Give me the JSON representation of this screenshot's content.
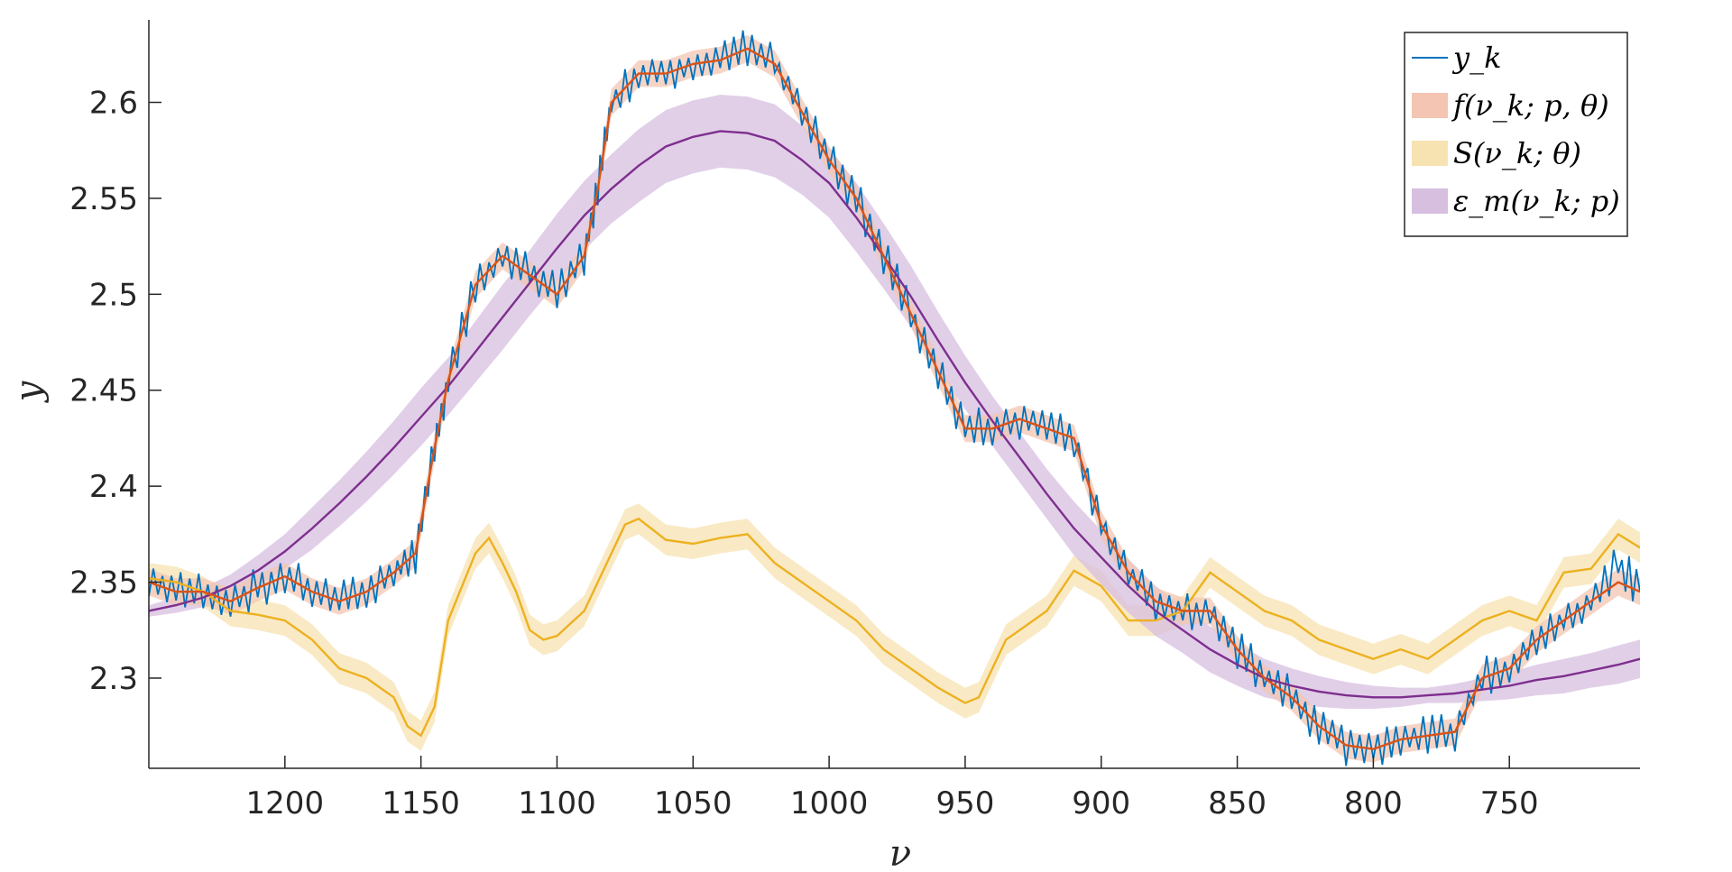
{
  "chart_data": {
    "type": "line",
    "xlabel": "ν",
    "ylabel": "y",
    "x_reversed": true,
    "xlim": [
      1250,
      702
    ],
    "ylim": [
      2.253,
      2.643
    ],
    "x_ticks": [
      1200,
      1150,
      1100,
      1050,
      1000,
      950,
      900,
      850,
      800,
      750
    ],
    "x_tick_labels": [
      "1200",
      "1150",
      "1100",
      "1050",
      "1000",
      "950",
      "900",
      "850",
      "800",
      "750"
    ],
    "y_ticks": [
      2.3,
      2.35,
      2.4,
      2.45,
      2.5,
      2.55,
      2.6
    ],
    "y_tick_labels": [
      "2.3",
      "2.35",
      "2.4",
      "2.45",
      "2.5",
      "2.55",
      "2.6"
    ],
    "grid": false,
    "legend_position": "top-right",
    "colors": {
      "y_k": "#0072BD",
      "f": "#D95319",
      "f_band": "#F3C5B2",
      "S": "#EDB120",
      "S_band": "#F7E3B2",
      "eps": "#7E2F8E",
      "eps_band": "#D7BFE0",
      "axis": "#262626"
    },
    "series": [
      {
        "key": "y_k",
        "name": "y_k",
        "style": "noisy line",
        "x": [
          1250,
          1240,
          1230,
          1220,
          1210,
          1200,
          1190,
          1180,
          1170,
          1160,
          1152,
          1145,
          1140,
          1130,
          1120,
          1110,
          1100,
          1090,
          1085,
          1080,
          1070,
          1060,
          1050,
          1040,
          1030,
          1020,
          1010,
          1000,
          990,
          980,
          970,
          960,
          950,
          940,
          930,
          920,
          910,
          900,
          890,
          880,
          870,
          860,
          850,
          840,
          830,
          820,
          810,
          800,
          790,
          780,
          770,
          760,
          750,
          740,
          730,
          720,
          710,
          702
        ],
        "y": [
          2.35,
          2.345,
          2.345,
          2.34,
          2.347,
          2.353,
          2.345,
          2.34,
          2.345,
          2.355,
          2.365,
          2.42,
          2.455,
          2.505,
          2.52,
          2.51,
          2.5,
          2.52,
          2.555,
          2.6,
          2.615,
          2.615,
          2.62,
          2.622,
          2.628,
          2.62,
          2.595,
          2.57,
          2.55,
          2.52,
          2.49,
          2.46,
          2.43,
          2.43,
          2.435,
          2.43,
          2.425,
          2.38,
          2.355,
          2.34,
          2.335,
          2.335,
          2.315,
          2.3,
          2.29,
          2.275,
          2.265,
          2.263,
          2.268,
          2.27,
          2.272,
          2.3,
          2.305,
          2.32,
          2.33,
          2.34,
          2.36,
          2.345
        ]
      },
      {
        "key": "f",
        "name": "f(ν_k; p, θ)",
        "x": [
          1250,
          1240,
          1230,
          1220,
          1210,
          1200,
          1190,
          1180,
          1170,
          1160,
          1152,
          1145,
          1140,
          1130,
          1120,
          1110,
          1100,
          1090,
          1085,
          1080,
          1070,
          1060,
          1050,
          1040,
          1030,
          1020,
          1010,
          1000,
          990,
          980,
          970,
          960,
          950,
          940,
          930,
          920,
          910,
          900,
          890,
          880,
          870,
          860,
          850,
          840,
          830,
          820,
          810,
          800,
          790,
          780,
          770,
          760,
          750,
          740,
          730,
          720,
          710,
          702
        ],
        "y": [
          2.35,
          2.345,
          2.345,
          2.34,
          2.347,
          2.353,
          2.345,
          2.34,
          2.345,
          2.355,
          2.365,
          2.42,
          2.455,
          2.505,
          2.52,
          2.51,
          2.5,
          2.52,
          2.555,
          2.6,
          2.615,
          2.615,
          2.62,
          2.622,
          2.628,
          2.62,
          2.595,
          2.57,
          2.55,
          2.52,
          2.49,
          2.46,
          2.43,
          2.43,
          2.435,
          2.43,
          2.425,
          2.38,
          2.355,
          2.34,
          2.335,
          2.335,
          2.315,
          2.3,
          2.29,
          2.275,
          2.265,
          2.263,
          2.268,
          2.27,
          2.272,
          2.3,
          2.305,
          2.32,
          2.33,
          2.34,
          2.35,
          2.345
        ],
        "band": 0.007
      },
      {
        "key": "S",
        "name": "S(ν_k; θ)",
        "x": [
          1250,
          1240,
          1230,
          1220,
          1210,
          1200,
          1190,
          1180,
          1170,
          1160,
          1155,
          1150,
          1145,
          1140,
          1130,
          1125,
          1120,
          1115,
          1110,
          1105,
          1100,
          1090,
          1085,
          1080,
          1075,
          1070,
          1060,
          1050,
          1040,
          1030,
          1020,
          1010,
          1000,
          990,
          980,
          970,
          960,
          950,
          945,
          940,
          935,
          930,
          920,
          910,
          900,
          890,
          880,
          870,
          860,
          850,
          840,
          830,
          820,
          810,
          800,
          790,
          780,
          770,
          760,
          750,
          740,
          730,
          720,
          710,
          702
        ],
        "y": [
          2.352,
          2.35,
          2.345,
          2.335,
          2.333,
          2.33,
          2.32,
          2.305,
          2.3,
          2.29,
          2.275,
          2.27,
          2.285,
          2.33,
          2.365,
          2.373,
          2.36,
          2.345,
          2.325,
          2.32,
          2.322,
          2.335,
          2.35,
          2.365,
          2.38,
          2.383,
          2.372,
          2.37,
          2.373,
          2.375,
          2.36,
          2.35,
          2.34,
          2.33,
          2.315,
          2.305,
          2.295,
          2.287,
          2.29,
          2.305,
          2.32,
          2.325,
          2.335,
          2.356,
          2.348,
          2.33,
          2.33,
          2.335,
          2.355,
          2.345,
          2.335,
          2.33,
          2.32,
          2.315,
          2.31,
          2.315,
          2.31,
          2.32,
          2.33,
          2.335,
          2.33,
          2.355,
          2.357,
          2.375,
          2.368
        ],
        "band": 0.008
      },
      {
        "key": "eps",
        "name": "ε_m(ν_k; p)",
        "x": [
          1250,
          1240,
          1230,
          1220,
          1210,
          1200,
          1190,
          1180,
          1170,
          1160,
          1150,
          1140,
          1130,
          1120,
          1110,
          1100,
          1090,
          1080,
          1070,
          1060,
          1050,
          1040,
          1030,
          1020,
          1010,
          1000,
          990,
          980,
          970,
          960,
          950,
          940,
          930,
          920,
          910,
          900,
          890,
          880,
          870,
          860,
          850,
          840,
          830,
          820,
          810,
          800,
          790,
          780,
          770,
          760,
          750,
          740,
          730,
          720,
          710,
          702
        ],
        "y": [
          2.335,
          2.338,
          2.342,
          2.348,
          2.356,
          2.366,
          2.378,
          2.391,
          2.405,
          2.42,
          2.436,
          2.452,
          2.47,
          2.488,
          2.506,
          2.524,
          2.541,
          2.555,
          2.567,
          2.577,
          2.582,
          2.585,
          2.584,
          2.58,
          2.57,
          2.558,
          2.54,
          2.52,
          2.499,
          2.476,
          2.454,
          2.434,
          2.415,
          2.396,
          2.378,
          2.363,
          2.348,
          2.335,
          2.325,
          2.315,
          2.307,
          2.3,
          2.296,
          2.293,
          2.291,
          2.29,
          2.29,
          2.291,
          2.292,
          2.294,
          2.296,
          2.299,
          2.301,
          2.304,
          2.307,
          2.31
        ],
        "band": [
          0.003,
          0.004,
          0.005,
          0.006,
          0.008,
          0.009,
          0.011,
          0.012,
          0.013,
          0.014,
          0.015,
          0.015,
          0.016,
          0.017,
          0.017,
          0.018,
          0.018,
          0.018,
          0.019,
          0.019,
          0.019,
          0.019,
          0.019,
          0.019,
          0.018,
          0.018,
          0.018,
          0.017,
          0.016,
          0.015,
          0.014,
          0.013,
          0.013,
          0.013,
          0.014,
          0.014,
          0.014,
          0.013,
          0.012,
          0.012,
          0.011,
          0.01,
          0.009,
          0.008,
          0.007,
          0.006,
          0.005,
          0.004,
          0.005,
          0.006,
          0.007,
          0.008,
          0.009,
          0.009,
          0.01,
          0.01
        ]
      }
    ]
  }
}
